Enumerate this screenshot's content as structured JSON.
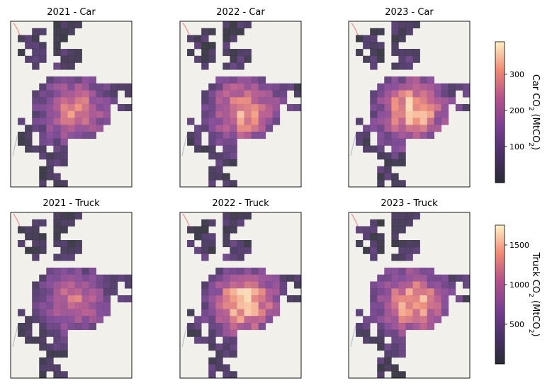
{
  "chart_data": {
    "type": "heatmap",
    "grid": {
      "cols": 17,
      "rows": 24
    },
    "background_color": "#f2f0eb",
    "colormap": "magma",
    "panels": [
      {
        "title": "2021 - Car",
        "vehicle": "car",
        "intensity": 0.82
      },
      {
        "title": "2022 - Car",
        "vehicle": "car",
        "intensity": 0.92
      },
      {
        "title": "2023 - Car",
        "vehicle": "car",
        "intensity": 1.0
      },
      {
        "title": "2021 - Truck",
        "vehicle": "truck",
        "intensity": 0.74
      },
      {
        "title": "2022 - Truck",
        "vehicle": "truck",
        "intensity": 1.0
      },
      {
        "title": "2023 - Truck",
        "vehicle": "truck",
        "intensity": 0.95
      }
    ],
    "colorbars": [
      {
        "vehicle": "car",
        "label_main": "Car CO",
        "label_sub": "2",
        "label_unit": " (MtCO",
        "label_unit_sub": "2",
        "label_close": ")",
        "min": 0,
        "max": 390,
        "ticks": [
          100,
          200,
          300
        ]
      },
      {
        "vehicle": "truck",
        "label_main": "Truck CO",
        "label_sub": "2",
        "label_unit": " (MtCO",
        "label_unit_sub": "2",
        "label_close": ")",
        "min": 0,
        "max": 1750,
        "ticks": [
          500,
          1000,
          1500
        ]
      }
    ]
  }
}
